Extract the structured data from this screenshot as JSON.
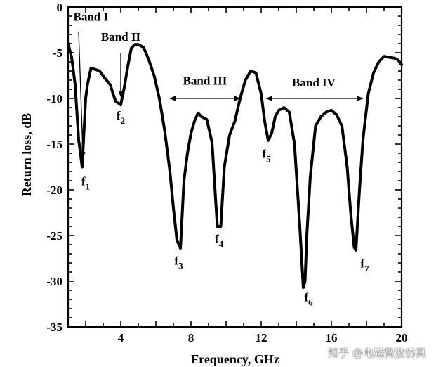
{
  "chart_data": {
    "type": "line",
    "xlabel": "Frequency, GHz",
    "ylabel": "Return loss, dB",
    "xlim": [
      1,
      20
    ],
    "ylim": [
      -35,
      0
    ],
    "xticks": [
      4,
      8,
      12,
      16,
      20
    ],
    "xtick_labels": [
      "4",
      "8",
      "12",
      "16",
      "20"
    ],
    "yticks": [
      0,
      -5,
      -10,
      -15,
      -20,
      -25,
      -30,
      -35
    ],
    "ytick_labels": [
      "0",
      "-5",
      "-10",
      "-15",
      "-20",
      "-25",
      "-30",
      "-35"
    ],
    "grid": false,
    "series": [
      {
        "x": [
          1.0,
          1.2,
          1.4,
          1.6,
          1.8,
          2.0,
          2.1,
          2.3,
          2.5,
          2.8,
          3.1,
          3.4,
          3.7,
          4.0,
          4.2,
          4.4,
          4.6,
          4.8,
          5.0,
          5.3,
          5.6,
          5.9,
          6.2,
          6.5,
          6.8,
          7.0,
          7.2,
          7.4,
          7.6,
          7.8,
          8.0,
          8.2,
          8.4,
          8.6,
          8.9,
          9.2,
          9.5,
          9.7,
          9.9,
          10.2,
          10.5,
          10.8,
          11.1,
          11.4,
          11.7,
          12.0,
          12.2,
          12.4,
          12.6,
          12.8,
          13.0,
          13.3,
          13.6,
          13.9,
          14.2,
          14.4,
          14.5,
          14.6,
          14.8,
          15.1,
          15.4,
          15.7,
          16.0,
          16.3,
          16.6,
          16.9,
          17.1,
          17.3,
          17.4,
          17.6,
          17.8,
          18.1,
          18.4,
          18.7,
          19.0,
          19.3,
          19.6,
          19.8,
          20.0
        ],
        "y": [
          -4.0,
          -5.5,
          -8.5,
          -14.5,
          -17.5,
          -10.0,
          -8.5,
          -6.7,
          -6.8,
          -7.0,
          -7.8,
          -8.5,
          -10.3,
          -10.7,
          -8.8,
          -6.5,
          -4.5,
          -4.1,
          -4.1,
          -4.4,
          -5.8,
          -7.5,
          -10.0,
          -13.5,
          -18.0,
          -22.0,
          -25.5,
          -26.4,
          -19.0,
          -16.0,
          -13.8,
          -12.5,
          -11.6,
          -12.0,
          -12.3,
          -14.8,
          -24.0,
          -24.0,
          -17.5,
          -14.0,
          -12.5,
          -10.0,
          -8.0,
          -7.0,
          -7.2,
          -9.5,
          -12.5,
          -14.6,
          -13.8,
          -12.0,
          -11.3,
          -11.0,
          -11.5,
          -15.0,
          -24.0,
          -30.7,
          -30.0,
          -25.0,
          -18.5,
          -13.0,
          -12.0,
          -11.5,
          -11.3,
          -11.8,
          -13.0,
          -17.5,
          -22.5,
          -26.3,
          -26.6,
          -20.0,
          -14.5,
          -9.5,
          -7.2,
          -6.0,
          -5.4,
          -5.5,
          -5.6,
          -5.8,
          -6.3
        ]
      }
    ],
    "annotations": {
      "bands": [
        {
          "label": "Band I",
          "x": 1.3,
          "y": -1.5,
          "arrow_from": [
            1.6,
            -2.7
          ],
          "arrow_to": [
            1.85,
            -16.5
          ]
        },
        {
          "label": "Band II",
          "x": 4.0,
          "y": -3.7,
          "arrow_from": [
            4.0,
            -5.0
          ],
          "arrow_to": [
            4.0,
            -9.8
          ]
        },
        {
          "label": "Band III",
          "x": 8.8,
          "y": -8.5,
          "range": [
            6.8,
            10.8
          ],
          "arrow_y": -10.0
        },
        {
          "label": "Band IV",
          "x": 15.0,
          "y": -8.7,
          "range": [
            12.3,
            17.8
          ],
          "arrow_y": -10.0
        }
      ],
      "points": [
        {
          "base": "f",
          "sub": "1",
          "x": 2.0,
          "y": -19.5
        },
        {
          "base": "f",
          "sub": "2",
          "x": 4.0,
          "y": -12.3
        },
        {
          "base": "f",
          "sub": "3",
          "x": 7.3,
          "y": -28.2
        },
        {
          "base": "f",
          "sub": "4",
          "x": 9.6,
          "y": -25.8
        },
        {
          "base": "f",
          "sub": "5",
          "x": 12.3,
          "y": -16.5
        },
        {
          "base": "f",
          "sub": "6",
          "x": 14.7,
          "y": -32.2
        },
        {
          "base": "f",
          "sub": "7",
          "x": 17.9,
          "y": -28.5
        }
      ]
    }
  },
  "watermark": "知乎 @电磁微波仿真"
}
